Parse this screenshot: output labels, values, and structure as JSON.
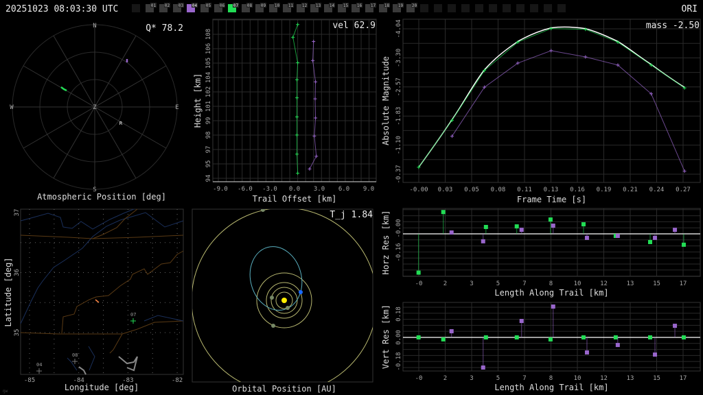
{
  "header": {
    "timestamp": "20251023 08:03:30 UTC",
    "shower_code": "ORI",
    "stations": [
      {
        "label": "",
        "state": "off"
      },
      {
        "label": "01",
        "state": "idle"
      },
      {
        "label": "02",
        "state": "idle"
      },
      {
        "label": "03",
        "state": "idle"
      },
      {
        "label": "04",
        "state": "purple"
      },
      {
        "label": "05",
        "state": "idle"
      },
      {
        "label": "06",
        "state": "idle"
      },
      {
        "label": "07",
        "state": "green"
      },
      {
        "label": "08",
        "state": "idle"
      },
      {
        "label": "09",
        "state": "idle"
      },
      {
        "label": "10",
        "state": "idle"
      },
      {
        "label": "11",
        "state": "idle"
      },
      {
        "label": "12",
        "state": "idle"
      },
      {
        "label": "13",
        "state": "idle"
      },
      {
        "label": "14",
        "state": "idle"
      },
      {
        "label": "15",
        "state": "idle"
      },
      {
        "label": "16",
        "state": "idle"
      },
      {
        "label": "17",
        "state": "idle"
      },
      {
        "label": "18",
        "state": "idle"
      },
      {
        "label": "19",
        "state": "idle"
      },
      {
        "label": "20",
        "state": "idle"
      },
      {
        "label": "",
        "state": "off"
      },
      {
        "label": "",
        "state": "off"
      },
      {
        "label": "",
        "state": "off"
      },
      {
        "label": "",
        "state": "off"
      },
      {
        "label": "",
        "state": "off"
      },
      {
        "label": "",
        "state": "off"
      },
      {
        "label": "",
        "state": "off"
      },
      {
        "label": "",
        "state": "off"
      },
      {
        "label": "",
        "state": "off"
      },
      {
        "label": "",
        "state": "off"
      },
      {
        "label": "",
        "state": "off"
      }
    ]
  },
  "colors": {
    "station_a": "#22dd55",
    "station_b": "#9966cc",
    "fit": "#ffffff",
    "grid": "#2a2a2a",
    "idle_box": "#3a3a3a",
    "off_box": "#161616",
    "orbit": "#b8b870",
    "meteoroid_orbit": "#5ab0c0",
    "meteoroid": "#1a6aff",
    "sun": "#ffee00"
  },
  "polar": {
    "title": "Atmospheric Position [deg]",
    "stat_label": "Q* 78.2",
    "directions": {
      "n": "N",
      "s": "S",
      "e": "E",
      "w": "W",
      "z": "Z"
    },
    "radiant_label": "R"
  },
  "map": {
    "xlabel": "Longitude [deg]",
    "ylabel": "Latitude [deg]",
    "xticks": [
      "-85",
      "-84",
      "-83",
      "-82"
    ],
    "yticks": [
      "37",
      "36",
      "35"
    ],
    "stations": [
      {
        "label": "07",
        "lon": -82.87,
        "lat": 35.2,
        "color": "#22dd55"
      },
      {
        "label": "08",
        "lon": -83.93,
        "lat": 34.5
      },
      {
        "label": "04",
        "lon": -84.7
      }
    ],
    "corner_mark": "ŋw"
  },
  "orbit": {
    "title": "Orbital Position [AU]",
    "stat_label": "T_j 1.84"
  },
  "chart_data": [
    {
      "type": "line",
      "id": "trail",
      "xlabel": "Trail Offset [km]",
      "ylabel": "Height [km]",
      "annotation": "vel 62.9",
      "xticks": [
        "-9.0",
        "-6.0",
        "-3.0",
        "0.0",
        "3.0",
        "6.0",
        "9.0"
      ],
      "yticks": [
        "108",
        "106",
        "105",
        "104",
        "102",
        "101",
        "99",
        "98",
        "97",
        "95",
        "94"
      ],
      "xlim": [
        -10.7,
        9.9
      ],
      "ylim": [
        93.7,
        109.0
      ],
      "grid": true,
      "series": [
        {
          "color": "#22dd55",
          "x": [
            0.0,
            -0.6,
            0.0,
            -0.1,
            -0.1,
            -0.1,
            -0.1,
            -0.1,
            0.0
          ],
          "y": [
            108.5,
            107.3,
            104.9,
            103.3,
            101.6,
            99.8,
            98.1,
            96.3,
            94.5
          ]
        },
        {
          "color": "#9966cc",
          "x": [
            2.0,
            1.9,
            2.25,
            2.2,
            2.25,
            2.1,
            2.35,
            1.5
          ],
          "y": [
            106.9,
            105.1,
            103.1,
            101.5,
            99.7,
            98.0,
            96.1,
            94.9
          ]
        }
      ]
    },
    {
      "type": "line",
      "id": "magnitude",
      "xlabel": "Frame Time [s]",
      "ylabel": "Absolute Magnitude",
      "annotation": "mass -2.50",
      "xticks": [
        "-0.00",
        "0.03",
        "0.05",
        "0.08",
        "0.11",
        "0.13",
        "0.16",
        "0.19",
        "0.21",
        "0.24",
        "0.27"
      ],
      "yticks": [
        "-4.04",
        "-3.30",
        "-2.57",
        "-1.83",
        "-1.10",
        "-0.37"
      ],
      "xlim": [
        -0.016,
        0.287
      ],
      "ylim": [
        -0.1,
        -4.3
      ],
      "grid": true,
      "series": [
        {
          "color": "#22dd55",
          "x": [
            0,
            0.034,
            0.067,
            0.101,
            0.135,
            0.17,
            0.203,
            0.237,
            0.271
          ],
          "y": [
            -0.49,
            -1.7,
            -2.98,
            -3.71,
            -4.06,
            -4.04,
            -3.71,
            -3.12,
            -2.53
          ]
        },
        {
          "color": "#9966cc",
          "x": [
            0.034,
            0.067,
            0.101,
            0.135,
            0.17,
            0.203,
            0.237,
            0.271
          ],
          "y": [
            -1.29,
            -2.55,
            -3.17,
            -3.49,
            -3.33,
            -3.12,
            -2.38,
            -0.39
          ]
        }
      ],
      "fit_color": "#ffffff"
    },
    {
      "type": "scatter",
      "id": "horz_res",
      "xlabel": "Length Along Trail [km]",
      "ylabel": "Horz Res [km]",
      "xticks": [
        "-0",
        "2",
        "3",
        "5",
        "7",
        "8",
        "10",
        "12",
        "13",
        "15",
        "17"
      ],
      "yticks": [
        "-0.00",
        "-0.16"
      ],
      "xlim": [
        -1.0,
        18.1
      ],
      "ylim": [
        -0.285,
        0.17
      ],
      "grid": true,
      "series": [
        {
          "color": "#22dd55",
          "x": [
            0,
            1.59,
            4.33,
            6.31,
            8.48,
            10.6,
            12.67,
            14.88,
            17.04
          ],
          "y": [
            -0.26,
            0.146,
            0.046,
            0.05,
            0.096,
            0.064,
            -0.014,
            -0.055,
            -0.073
          ]
        },
        {
          "color": "#9966cc",
          "x": [
            2.12,
            4.15,
            6.62,
            8.65,
            10.82,
            12.8,
            15.19,
            16.47
          ],
          "y": [
            0.009,
            -0.05,
            0.027,
            0.055,
            -0.027,
            -0.014,
            -0.027,
            0.027
          ]
        }
      ]
    },
    {
      "type": "scatter",
      "id": "vert_res",
      "xlabel": "Length Along Trail [km]",
      "ylabel": "Vert Res [km]",
      "xticks": [
        "-0",
        "2",
        "3",
        "5",
        "7",
        "8",
        "10",
        "12",
        "13",
        "15",
        "17"
      ],
      "yticks": [
        "0.18",
        "0.00",
        "-0.18"
      ],
      "xlim": [
        -1.0,
        18.1
      ],
      "ylim": [
        -0.252,
        0.262
      ],
      "grid": true,
      "series": [
        {
          "color": "#22dd55",
          "x": [
            0,
            1.59,
            4.33,
            6.31,
            8.48,
            10.6,
            12.67,
            14.88,
            17.04
          ],
          "y": [
            0,
            -0.015,
            0,
            0,
            -0.015,
            0,
            0,
            0,
            0
          ]
        },
        {
          "color": "#9966cc",
          "x": [
            2.12,
            4.15,
            6.62,
            8.65,
            10.82,
            12.8,
            15.19,
            16.47
          ],
          "y": [
            0.046,
            -0.226,
            0.123,
            0.231,
            -0.113,
            -0.057,
            -0.129,
            0.087
          ]
        }
      ]
    }
  ]
}
